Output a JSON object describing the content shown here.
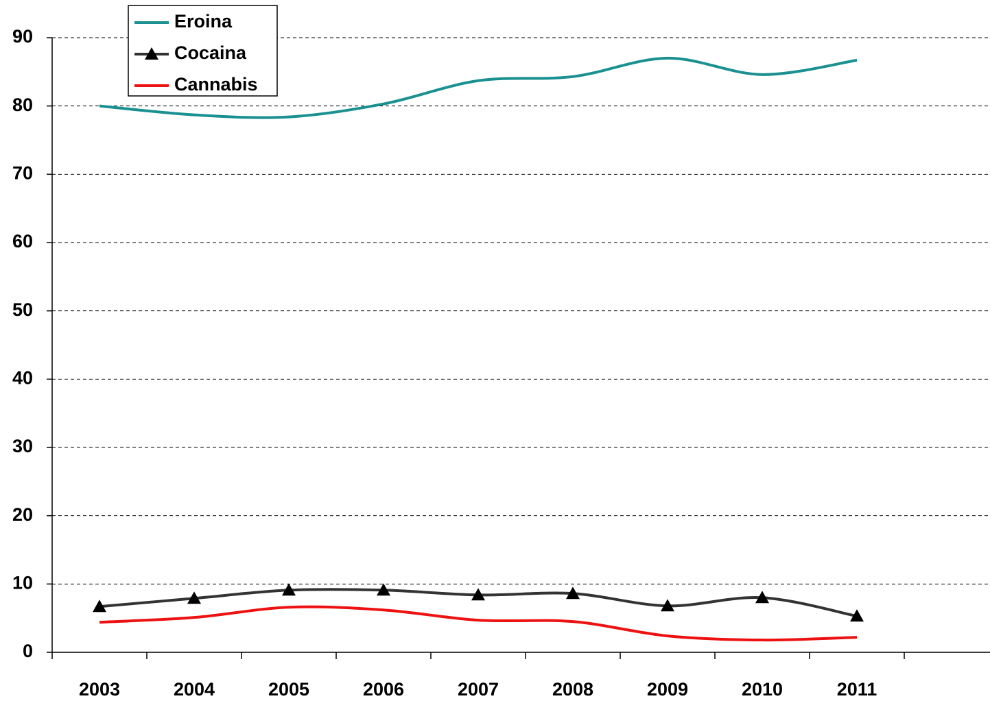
{
  "chart_data": {
    "type": "line",
    "categories": [
      "2003",
      "2004",
      "2005",
      "2006",
      "2007",
      "2008",
      "2009",
      "2010",
      "2011"
    ],
    "series": [
      {
        "name": "Eroina",
        "color": "#1a9090",
        "marker": "none",
        "values": [
          80,
          78.7,
          78.4,
          80.3,
          83.7,
          84.3,
          87.0,
          84.6,
          86.7
        ]
      },
      {
        "name": "Cocaina",
        "color": "#333333",
        "marker": "triangle",
        "values": [
          6.7,
          7.9,
          9.1,
          9.1,
          8.4,
          8.6,
          6.8,
          8.0,
          5.3
        ]
      },
      {
        "name": "Cannabis",
        "color": "#ee1111",
        "marker": "none",
        "values": [
          4.4,
          5.1,
          6.6,
          6.2,
          4.7,
          4.5,
          2.4,
          1.8,
          2.2
        ]
      }
    ],
    "ylim": [
      0,
      90
    ],
    "yticks": [
      0,
      10,
      20,
      30,
      40,
      50,
      60,
      70,
      80,
      90
    ],
    "grid": true,
    "smooth": true,
    "legend": "top-left"
  }
}
